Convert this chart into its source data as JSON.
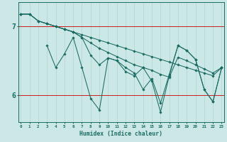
{
  "xlabel": "Humidex (Indice chaleur)",
  "bg_color": "#cce8e6",
  "line_color": "#1a6b62",
  "grid_color": "#aed4d0",
  "x": [
    0,
    1,
    2,
    3,
    4,
    5,
    6,
    7,
    8,
    9,
    10,
    11,
    12,
    13,
    14,
    15,
    16,
    17,
    18,
    19,
    20,
    21,
    22,
    23
  ],
  "line1": [
    7.18,
    7.18,
    7.08,
    7.04,
    7.0,
    6.96,
    6.92,
    6.88,
    6.84,
    6.8,
    6.76,
    6.72,
    6.68,
    6.64,
    6.6,
    6.56,
    6.52,
    6.48,
    6.44,
    6.4,
    6.36,
    6.32,
    6.28,
    6.4
  ],
  "line2": [
    7.18,
    7.18,
    7.08,
    7.04,
    7.0,
    6.96,
    6.92,
    6.84,
    6.76,
    6.68,
    6.62,
    6.56,
    6.5,
    6.44,
    6.4,
    6.36,
    6.3,
    6.26,
    6.55,
    6.5,
    6.44,
    6.38,
    6.32,
    6.4
  ],
  "line3": [
    7.18,
    7.18,
    7.08,
    7.04,
    7.0,
    6.96,
    6.92,
    6.84,
    6.58,
    6.44,
    6.54,
    6.5,
    6.4,
    6.32,
    6.08,
    6.24,
    5.88,
    6.3,
    6.72,
    6.65,
    6.52,
    6.08,
    5.9,
    6.4
  ],
  "line4_x": [
    3,
    4,
    5,
    6,
    7,
    8,
    9,
    10,
    11,
    12,
    13,
    14,
    15,
    16,
    17,
    18,
    19,
    20,
    21,
    22,
    23
  ],
  "line4": [
    6.72,
    6.4,
    6.6,
    6.84,
    6.4,
    5.95,
    5.78,
    6.54,
    6.5,
    6.34,
    6.28,
    6.4,
    6.2,
    5.75,
    6.28,
    6.72,
    6.65,
    6.52,
    6.08,
    5.9,
    6.4
  ],
  "ylim": [
    5.6,
    7.35
  ],
  "yticks": [
    6.0,
    7.0
  ],
  "xlim": [
    -0.3,
    23.3
  ]
}
